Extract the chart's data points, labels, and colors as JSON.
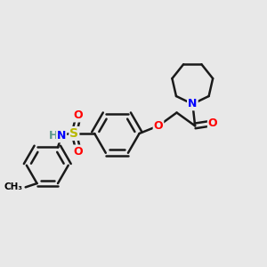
{
  "bg_color": "#e8e8e8",
  "atom_colors": {
    "N": "#0000ff",
    "O": "#ff0000",
    "S": "#b8b800",
    "H": "#5a9a8a",
    "C": "#000000"
  },
  "bond_color": "#1a1a1a",
  "bond_width": 1.8,
  "figsize": [
    3.0,
    3.0
  ],
  "dpi": 100,
  "xlim": [
    0,
    10
  ],
  "ylim": [
    0,
    10
  ]
}
